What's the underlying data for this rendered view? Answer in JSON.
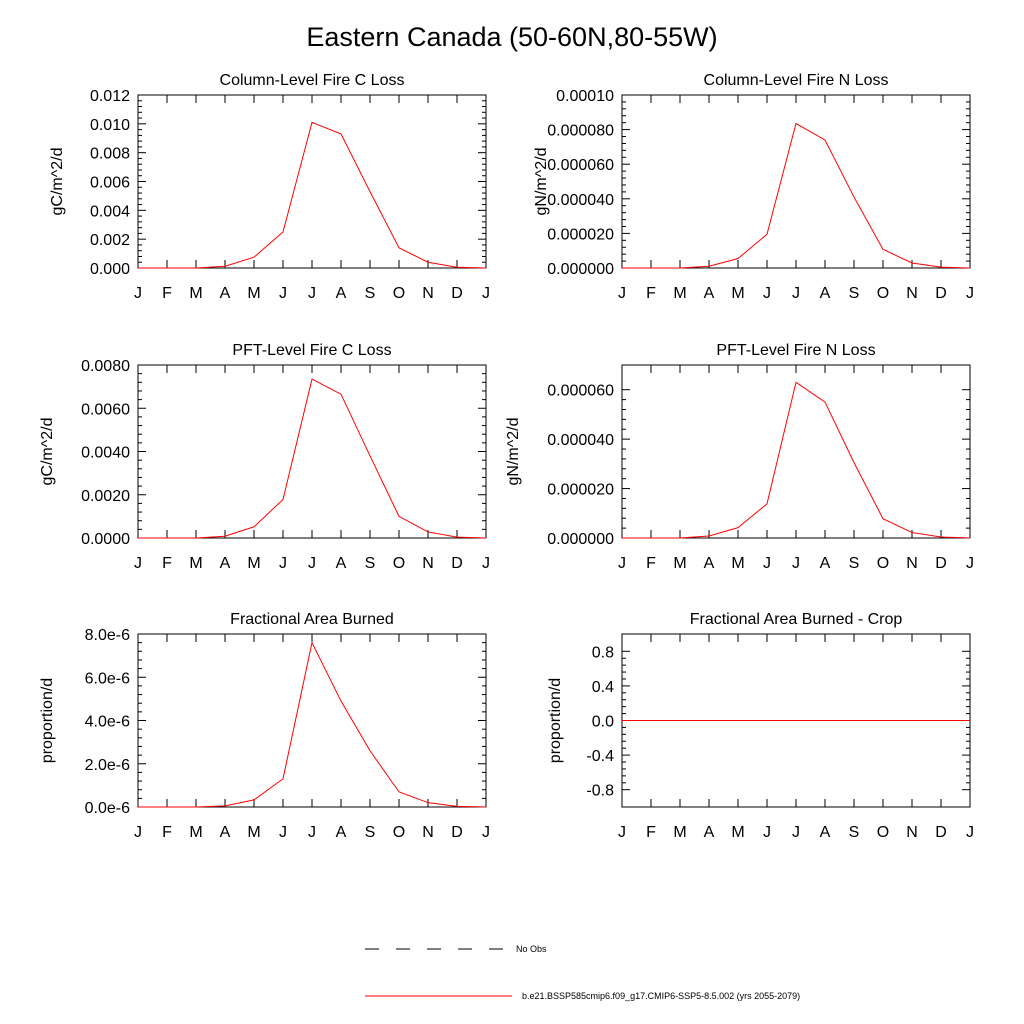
{
  "figure": {
    "title": "Eastern Canada (50-60N,80-55W)"
  },
  "legend": {
    "entries": [
      {
        "label": "No Obs",
        "color": "#000000",
        "style": "dashed"
      },
      {
        "label": "b.e21.BSSP585cmip6.f09_g17.CMIP6-SSP5-8.5.002 (yrs 2055-2079)",
        "color": "#ff0000",
        "style": "solid"
      }
    ]
  },
  "chart_data": [
    {
      "type": "line",
      "title": "Column-Level Fire C Loss",
      "ylabel": "gC/m^2/d",
      "categories": [
        "J",
        "F",
        "M",
        "A",
        "M",
        "J",
        "J",
        "A",
        "S",
        "O",
        "N",
        "D",
        "J"
      ],
      "ylim": [
        0,
        0.012
      ],
      "yticks": [
        0.0,
        0.002,
        0.004,
        0.006,
        0.008,
        0.01,
        0.012
      ],
      "ytick_labels": [
        "0.000",
        "0.002",
        "0.004",
        "0.006",
        "0.008",
        "0.010",
        "0.012"
      ],
      "series": [
        {
          "name": "b.e21.BSSP585cmip6.f09_g17.CMIP6-SSP5-8.5.002 (yrs 2055-2079)",
          "color": "#ff0000",
          "values": [
            0.0,
            0.0,
            0.0,
            0.00012,
            0.00075,
            0.0025,
            0.0101,
            0.0093,
            0.0053,
            0.0014,
            0.0004,
            5e-05,
            0.0
          ]
        }
      ]
    },
    {
      "type": "line",
      "title": "Column-Level Fire N Loss",
      "ylabel": "gN/m^2/d",
      "categories": [
        "J",
        "F",
        "M",
        "A",
        "M",
        "J",
        "J",
        "A",
        "S",
        "O",
        "N",
        "D",
        "J"
      ],
      "ylim": [
        0,
        0.0001
      ],
      "yticks": [
        0.0,
        2e-05,
        4e-05,
        6e-05,
        8e-05,
        0.0001
      ],
      "ytick_labels": [
        "0.000000",
        "0.000020",
        "0.000040",
        "0.000060",
        "0.000080",
        "0.00010"
      ],
      "series": [
        {
          "name": "b.e21.BSSP585cmip6.f09_g17.CMIP6-SSP5-8.5.002 (yrs 2055-2079)",
          "color": "#ff0000",
          "values": [
            0.0,
            0.0,
            0.0,
            1e-06,
            5.5e-06,
            1.95e-05,
            8.35e-05,
            7.4e-05,
            4.1e-05,
            1.08e-05,
            2.9e-06,
            5e-07,
            0.0
          ]
        }
      ]
    },
    {
      "type": "line",
      "title": "PFT-Level Fire C Loss",
      "ylabel": "gC/m^2/d",
      "categories": [
        "J",
        "F",
        "M",
        "A",
        "M",
        "J",
        "J",
        "A",
        "S",
        "O",
        "N",
        "D",
        "J"
      ],
      "ylim": [
        0,
        0.008
      ],
      "yticks": [
        0.0,
        0.002,
        0.004,
        0.006,
        0.008
      ],
      "ytick_labels": [
        "0.0000",
        "0.0020",
        "0.0040",
        "0.0060",
        "0.0080"
      ],
      "series": [
        {
          "name": "b.e21.BSSP585cmip6.f09_g17.CMIP6-SSP5-8.5.002 (yrs 2055-2079)",
          "color": "#ff0000",
          "values": [
            0.0,
            0.0,
            0.0,
            8e-05,
            0.00052,
            0.00178,
            0.00735,
            0.00665,
            0.0038,
            0.001,
            0.00028,
            4e-05,
            0.0
          ]
        }
      ]
    },
    {
      "type": "line",
      "title": "PFT-Level Fire N Loss",
      "ylabel": "gN/m^2/d",
      "categories": [
        "J",
        "F",
        "M",
        "A",
        "M",
        "J",
        "J",
        "A",
        "S",
        "O",
        "N",
        "D",
        "J"
      ],
      "ylim": [
        0,
        7e-05
      ],
      "yticks": [
        0.0,
        2e-05,
        4e-05,
        6e-05
      ],
      "ytick_labels": [
        "0.000000",
        "0.000020",
        "0.000040",
        "0.000060"
      ],
      "series": [
        {
          "name": "b.e21.BSSP585cmip6.f09_g17.CMIP6-SSP5-8.5.002 (yrs 2055-2079)",
          "color": "#ff0000",
          "values": [
            0.0,
            0.0,
            0.0,
            8e-07,
            4.2e-06,
            1.38e-05,
            6.3e-05,
            5.5e-05,
            3.05e-05,
            7.8e-06,
            2.2e-06,
            4e-07,
            0.0
          ]
        }
      ]
    },
    {
      "type": "line",
      "title": "Fractional Area Burned",
      "ylabel": "proportion/d",
      "categories": [
        "J",
        "F",
        "M",
        "A",
        "M",
        "J",
        "J",
        "A",
        "S",
        "O",
        "N",
        "D",
        "J"
      ],
      "ylim": [
        0,
        8e-06
      ],
      "yticks": [
        0.0,
        2e-06,
        4e-06,
        6e-06,
        8e-06
      ],
      "ytick_labels": [
        "0.0e-6",
        "2.0e-6",
        "4.0e-6",
        "6.0e-6",
        "8.0e-6"
      ],
      "series": [
        {
          "name": "b.e21.BSSP585cmip6.f09_g17.CMIP6-SSP5-8.5.002 (yrs 2055-2079)",
          "color": "#ff0000",
          "values": [
            0.0,
            0.0,
            0.0,
            5e-08,
            3.3e-07,
            1.3e-06,
            7.6e-06,
            4.9e-06,
            2.6e-06,
            7e-07,
            2e-07,
            3e-08,
            0.0
          ]
        }
      ]
    },
    {
      "type": "line",
      "title": "Fractional Area Burned - Crop",
      "ylabel": "proportion/d",
      "categories": [
        "J",
        "F",
        "M",
        "A",
        "M",
        "J",
        "J",
        "A",
        "S",
        "O",
        "N",
        "D",
        "J"
      ],
      "ylim": [
        -1.0,
        1.0
      ],
      "yticks": [
        -0.8,
        -0.4,
        0.0,
        0.4,
        0.8
      ],
      "ytick_labels": [
        "-0.8",
        "-0.4",
        "0.0",
        "0.4",
        "0.8"
      ],
      "series": [
        {
          "name": "b.e21.BSSP585cmip6.f09_g17.CMIP6-SSP5-8.5.002 (yrs 2055-2079)",
          "color": "#ff0000",
          "values": [
            0,
            0,
            0,
            0,
            0,
            0,
            0,
            0,
            0,
            0,
            0,
            0,
            0
          ]
        }
      ]
    }
  ]
}
